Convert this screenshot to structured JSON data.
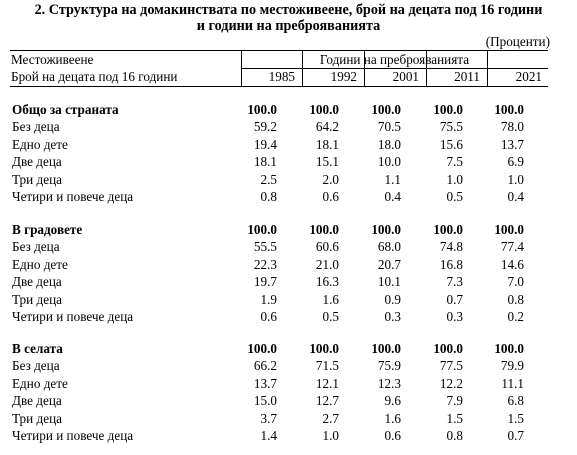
{
  "title": {
    "line1": "2. Структура на домакинствата по местоживеене, брой на децата под 16 години",
    "line2": "и години на преброяванията"
  },
  "unit": "(Проценти)",
  "header": {
    "stub_line1": "Местоживеене",
    "stub_line2": "Брой на децата под 16 години",
    "group_label": "Години на преброяванията",
    "years": [
      "1985",
      "1992",
      "2001",
      "2011",
      "2021"
    ]
  },
  "sections": [
    {
      "rows": [
        {
          "label": "Общо за страната",
          "bold": true,
          "values": [
            "100.0",
            "100.0",
            "100.0",
            "100.0",
            "100.0"
          ]
        },
        {
          "label": "Без деца",
          "bold": false,
          "values": [
            "59.2",
            "64.2",
            "70.5",
            "75.5",
            "78.0"
          ]
        },
        {
          "label": "Едно дете",
          "bold": false,
          "values": [
            "19.4",
            "18.1",
            "18.0",
            "15.6",
            "13.7"
          ]
        },
        {
          "label": "Две деца",
          "bold": false,
          "values": [
            "18.1",
            "15.1",
            "10.0",
            "7.5",
            "6.9"
          ]
        },
        {
          "label": "Три деца",
          "bold": false,
          "values": [
            "2.5",
            "2.0",
            "1.1",
            "1.0",
            "1.0"
          ]
        },
        {
          "label": "Четири и повече деца",
          "bold": false,
          "values": [
            "0.8",
            "0.6",
            "0.4",
            "0.5",
            "0.4"
          ]
        }
      ]
    },
    {
      "rows": [
        {
          "label": "В градовете",
          "bold": true,
          "values": [
            "100.0",
            "100.0",
            "100.0",
            "100.0",
            "100.0"
          ]
        },
        {
          "label": "Без деца",
          "bold": false,
          "values": [
            "55.5",
            "60.6",
            "68.0",
            "74.8",
            "77.4"
          ]
        },
        {
          "label": "Едно дете",
          "bold": false,
          "values": [
            "22.3",
            "21.0",
            "20.7",
            "16.8",
            "14.6"
          ]
        },
        {
          "label": "Две деца",
          "bold": false,
          "values": [
            "19.7",
            "16.3",
            "10.1",
            "7.3",
            "7.0"
          ]
        },
        {
          "label": "Три деца",
          "bold": false,
          "values": [
            "1.9",
            "1.6",
            "0.9",
            "0.7",
            "0.8"
          ]
        },
        {
          "label": "Четири и повече деца",
          "bold": false,
          "values": [
            "0.6",
            "0.5",
            "0.3",
            "0.3",
            "0.2"
          ]
        }
      ]
    },
    {
      "rows": [
        {
          "label": "В селата",
          "bold": true,
          "values": [
            "100.0",
            "100.0",
            "100.0",
            "100.0",
            "100.0"
          ]
        },
        {
          "label": "Без деца",
          "bold": false,
          "values": [
            "66.2",
            "71.5",
            "75.9",
            "77.5",
            "79.9"
          ]
        },
        {
          "label": "Едно дете",
          "bold": false,
          "values": [
            "13.7",
            "12.1",
            "12.3",
            "12.2",
            "11.1"
          ]
        },
        {
          "label": "Две деца",
          "bold": false,
          "values": [
            "15.0",
            "12.7",
            "9.6",
            "7.9",
            "6.8"
          ]
        },
        {
          "label": "Три деца",
          "bold": false,
          "values": [
            "3.7",
            "2.7",
            "1.6",
            "1.5",
            "1.5"
          ]
        },
        {
          "label": "Четири и повече деца",
          "bold": false,
          "values": [
            "1.4",
            "1.0",
            "0.6",
            "0.8",
            "0.7"
          ]
        }
      ]
    }
  ]
}
